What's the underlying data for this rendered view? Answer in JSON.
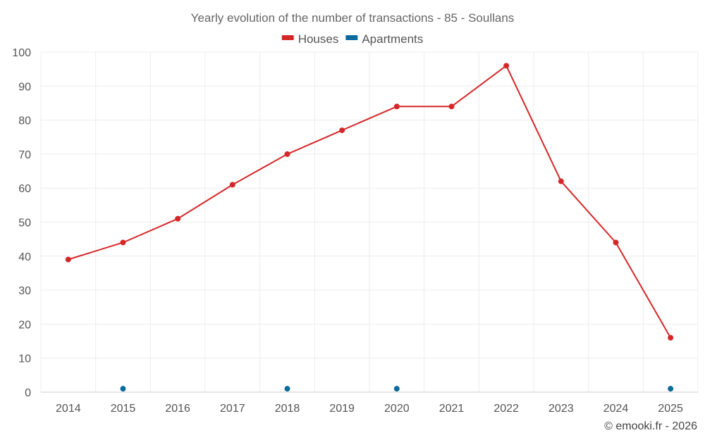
{
  "chart_data": {
    "type": "line",
    "title": "Yearly evolution of the number of transactions - 85 - Soullans",
    "categories": [
      "2014",
      "2015",
      "2016",
      "2017",
      "2018",
      "2019",
      "2020",
      "2021",
      "2022",
      "2023",
      "2024",
      "2025"
    ],
    "series": [
      {
        "name": "Houses",
        "color": "#d62728",
        "mode": "line",
        "values": [
          39,
          44,
          51,
          61,
          70,
          77,
          84,
          84,
          96,
          62,
          44,
          16
        ]
      },
      {
        "name": "Apartments",
        "color": "#0b6a9e",
        "mode": "points",
        "values": [
          null,
          1,
          null,
          null,
          1,
          null,
          1,
          null,
          null,
          null,
          null,
          1
        ]
      }
    ],
    "ylim": [
      0,
      100
    ],
    "yticks": [
      0,
      10,
      20,
      30,
      40,
      50,
      60,
      70,
      80,
      90,
      100
    ],
    "grid": true,
    "legend_position": "top-center",
    "xlabel": "",
    "ylabel": ""
  },
  "credit": "© emooki.fr - 2026"
}
